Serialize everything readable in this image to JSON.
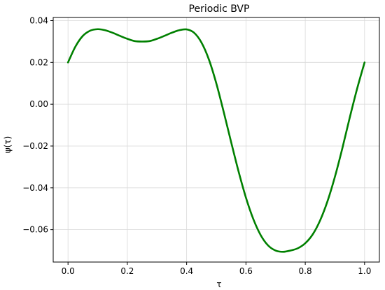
{
  "chart_data": {
    "type": "line",
    "title": "Periodic BVP",
    "xlabel": "τ",
    "ylabel": "ψ(τ)",
    "xlim": [
      -0.05,
      1.05
    ],
    "ylim": [
      -0.0755,
      0.0415
    ],
    "xticks": [
      0.0,
      0.2,
      0.4,
      0.6,
      0.8,
      1.0
    ],
    "xtick_labels": [
      "0.0",
      "0.2",
      "0.4",
      "0.6",
      "0.8",
      "1.0"
    ],
    "yticks": [
      0.04,
      0.02,
      0.0,
      -0.02,
      -0.04,
      -0.06
    ],
    "ytick_labels": [
      "0.04",
      "0.02",
      "0.00",
      "−0.02",
      "−0.04",
      "−0.06"
    ],
    "grid": true,
    "series": [
      {
        "color": "#008000",
        "x": [
          0.0,
          0.025,
          0.05,
          0.075,
          0.1,
          0.125,
          0.15,
          0.175,
          0.2,
          0.225,
          0.25,
          0.275,
          0.3,
          0.325,
          0.35,
          0.375,
          0.4,
          0.425,
          0.45,
          0.475,
          0.5,
          0.525,
          0.55,
          0.575,
          0.6,
          0.625,
          0.65,
          0.675,
          0.7,
          0.725,
          0.75,
          0.775,
          0.8,
          0.825,
          0.85,
          0.875,
          0.9,
          0.925,
          0.95,
          0.975,
          1.0
        ],
        "y": [
          0.02,
          0.0276,
          0.0327,
          0.0352,
          0.0359,
          0.0354,
          0.0342,
          0.0327,
          0.0313,
          0.0302,
          0.03,
          0.0302,
          0.0313,
          0.0327,
          0.0342,
          0.0354,
          0.0358,
          0.0342,
          0.0295,
          0.0214,
          0.01,
          -0.0037,
          -0.0181,
          -0.0321,
          -0.0447,
          -0.055,
          -0.0627,
          -0.0676,
          -0.07,
          -0.0706,
          -0.07,
          -0.0689,
          -0.0665,
          -0.0623,
          -0.0556,
          -0.0464,
          -0.0347,
          -0.0211,
          -0.0064,
          0.0075,
          0.02
        ]
      }
    ]
  }
}
